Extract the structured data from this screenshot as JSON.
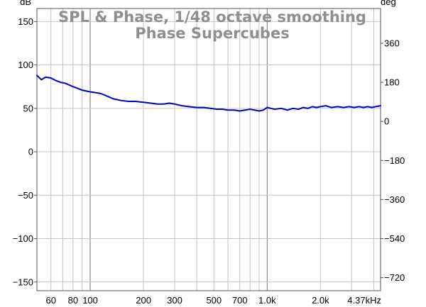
{
  "chart_data": {
    "type": "line",
    "title": "SPL & Phase, 1/48 octave smoothing",
    "subtitle": "Phase Supercubes",
    "xlabel": "",
    "ylabel": "dB",
    "y2label": "deg",
    "x_scale": "log",
    "xlim": [
      50,
      4370
    ],
    "ylim": [
      -160,
      165
    ],
    "y2lim": [
      -780,
      520
    ],
    "grid": true,
    "legend": "none",
    "x_ticks": [
      {
        "value": 60,
        "label": "60"
      },
      {
        "value": 80,
        "label": "80"
      },
      {
        "value": 100,
        "label": "100"
      },
      {
        "value": 200,
        "label": "200"
      },
      {
        "value": 300,
        "label": "300"
      },
      {
        "value": 500,
        "label": "500"
      },
      {
        "value": 700,
        "label": "700"
      },
      {
        "value": 1000,
        "label": "1.0k"
      },
      {
        "value": 2000,
        "label": "2.0k"
      },
      {
        "value": 4370,
        "label": "4.37kHz"
      }
    ],
    "y_ticks": [
      150,
      100,
      50,
      0,
      -50,
      -100,
      -150
    ],
    "y2_ticks": [
      360,
      180,
      0,
      -180,
      -360,
      -540,
      -720
    ],
    "series": [
      {
        "color": "#0000cc",
        "x": [
          50,
          53,
          56,
          60,
          64,
          68,
          72,
          76,
          80,
          85,
          90,
          95,
          100,
          108,
          115,
          125,
          135,
          150,
          165,
          180,
          200,
          220,
          240,
          260,
          280,
          300,
          330,
          360,
          400,
          440,
          480,
          520,
          560,
          600,
          650,
          700,
          750,
          800,
          850,
          900,
          950,
          1000,
          1100,
          1200,
          1300,
          1400,
          1500,
          1600,
          1700,
          1800,
          1900,
          2000,
          2150,
          2300,
          2500,
          2700,
          2900,
          3100,
          3300,
          3500,
          3700,
          3900,
          4100,
          4370
        ],
        "y": [
          88,
          83,
          86,
          85,
          82,
          80,
          79,
          77,
          75,
          73,
          71,
          70,
          69,
          68,
          67,
          64,
          61,
          59,
          58,
          58,
          57,
          56,
          55,
          55,
          56,
          55,
          53,
          52,
          51,
          51,
          50,
          49,
          49,
          48,
          48,
          47,
          48,
          49,
          48,
          47,
          48,
          51,
          49,
          50,
          48,
          50,
          49,
          51,
          50,
          52,
          51,
          52,
          53,
          51,
          52,
          51,
          52,
          51,
          52,
          51,
          52,
          51,
          52,
          53
        ]
      }
    ]
  }
}
